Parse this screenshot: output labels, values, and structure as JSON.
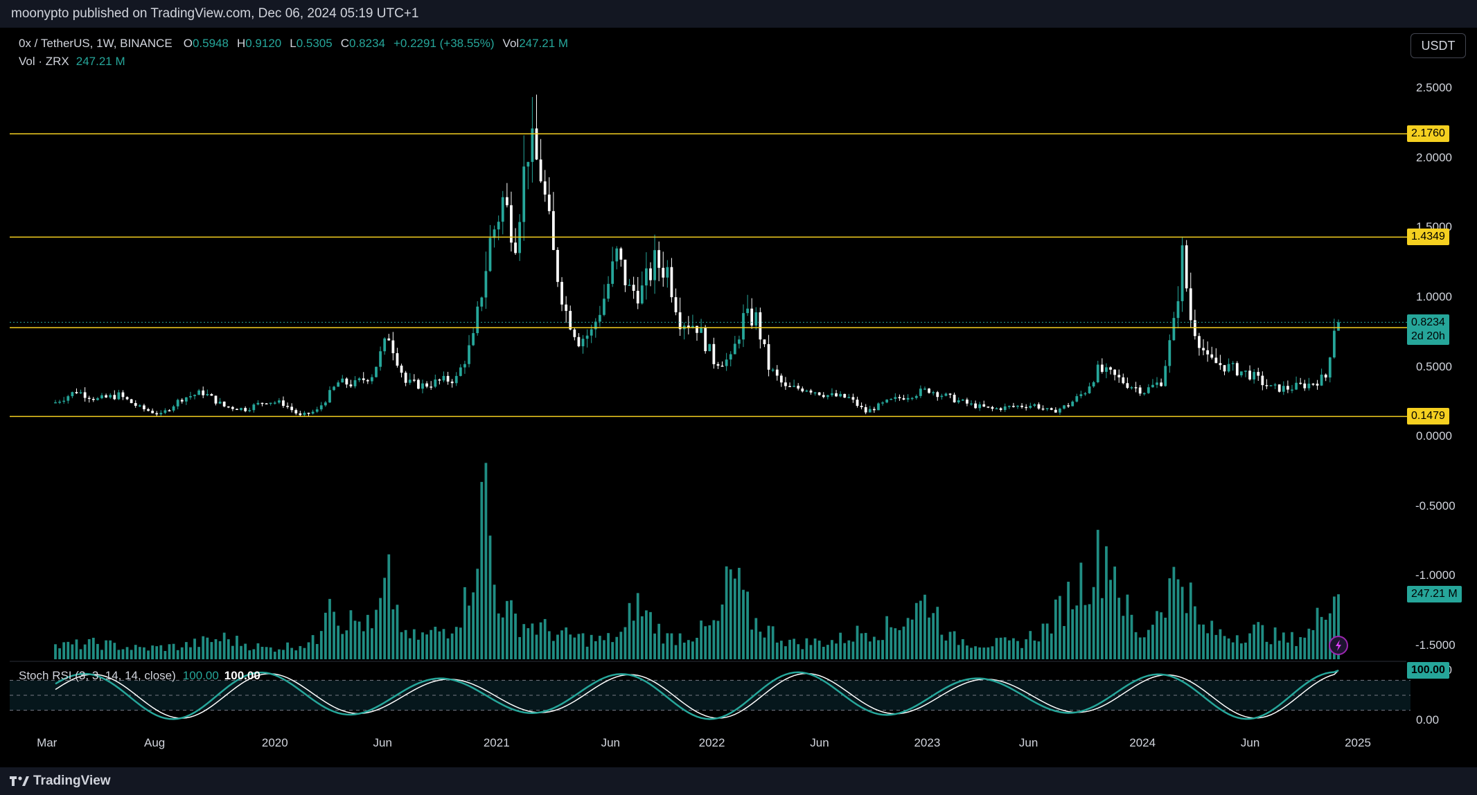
{
  "header": {
    "publisher": "moonypto published on TradingView.com, Dec 06, 2024 05:19 UTC+1"
  },
  "legend": {
    "symbol": "0x / TetherUS, 1W, BINANCE",
    "o_label": "O",
    "o": "0.5948",
    "h_label": "H",
    "h": "0.9120",
    "l_label": "L",
    "l": "0.5305",
    "c_label": "C",
    "c": "0.8234",
    "change": "+0.2291 (+38.55%)",
    "vol_label": "Vol",
    "vol": "247.21 M"
  },
  "volume_legend": {
    "label": "Vol · ZRX",
    "value": "247.21 M"
  },
  "rsi_legend": {
    "label": "Stoch RSI (3, 3, 14, 14, close)",
    "k": "100.00",
    "d": "100.00"
  },
  "currency": "USDT",
  "footer": {
    "brand": "TradingView"
  },
  "colors": {
    "up": "#26a69a",
    "down": "#ffffff",
    "level": "#f5d020",
    "background": "#000000",
    "bars": "#131722"
  },
  "chart_data": {
    "type": "candlestick",
    "title": "0x / TetherUS, 1W, BINANCE",
    "price_axis": {
      "ticks": [
        "2.5000",
        "2.0000",
        "1.5000",
        "1.0000",
        "0.5000",
        "0.0000",
        "-0.5000",
        "-1.0000",
        "-1.5000"
      ],
      "range": [
        -1.6,
        2.6
      ]
    },
    "time_axis": {
      "ticks": [
        "Mar",
        "Aug",
        "2020",
        "Jun",
        "2021",
        "Jun",
        "2022",
        "Jun",
        "2023",
        "Jun",
        "2024",
        "Jun",
        "2025"
      ]
    },
    "horizontal_levels": [
      "2.1760",
      "1.4349",
      "0.7853",
      "0.1479"
    ],
    "last_price": {
      "value": "0.8234",
      "countdown": "2d 20h"
    },
    "volume_last": "247.21 M",
    "rsi_axis": {
      "ticks": [
        "100.00",
        "0.00"
      ]
    },
    "rsi_last": "100.00",
    "weekly_close_approx": [
      [
        0,
        0.25
      ],
      [
        10,
        0.33
      ],
      [
        20,
        0.27
      ],
      [
        30,
        0.3
      ],
      [
        40,
        0.21
      ],
      [
        50,
        0.16
      ],
      [
        60,
        0.28
      ],
      [
        70,
        0.32
      ],
      [
        80,
        0.22
      ],
      [
        90,
        0.2
      ],
      [
        100,
        0.26
      ],
      [
        108,
        0.24
      ],
      [
        116,
        0.15
      ],
      [
        124,
        0.19
      ],
      [
        134,
        0.39
      ],
      [
        142,
        0.38
      ],
      [
        150,
        0.45
      ],
      [
        158,
        0.73
      ],
      [
        166,
        0.39
      ],
      [
        174,
        0.37
      ],
      [
        182,
        0.4
      ],
      [
        190,
        0.42
      ],
      [
        198,
        0.7
      ],
      [
        206,
        1.4
      ],
      [
        212,
        1.7
      ],
      [
        218,
        1.45
      ],
      [
        224,
        2.1
      ],
      [
        230,
        1.9
      ],
      [
        236,
        1.3
      ],
      [
        242,
        0.9
      ],
      [
        248,
        0.7
      ],
      [
        254,
        0.75
      ],
      [
        260,
        1.0
      ],
      [
        266,
        1.3
      ],
      [
        272,
        1.05
      ],
      [
        278,
        1.05
      ],
      [
        284,
        1.25
      ],
      [
        290,
        1.2
      ],
      [
        296,
        0.85
      ],
      [
        304,
        0.8
      ],
      [
        312,
        0.55
      ],
      [
        320,
        0.55
      ],
      [
        326,
        0.85
      ],
      [
        332,
        0.85
      ],
      [
        338,
        0.5
      ],
      [
        346,
        0.35
      ],
      [
        356,
        0.35
      ],
      [
        366,
        0.3
      ],
      [
        376,
        0.28
      ],
      [
        384,
        0.18
      ],
      [
        394,
        0.25
      ],
      [
        404,
        0.3
      ],
      [
        414,
        0.34
      ],
      [
        424,
        0.28
      ],
      [
        434,
        0.23
      ],
      [
        444,
        0.2
      ],
      [
        454,
        0.22
      ],
      [
        464,
        0.23
      ],
      [
        472,
        0.18
      ],
      [
        480,
        0.23
      ],
      [
        488,
        0.33
      ],
      [
        494,
        0.48
      ],
      [
        500,
        0.45
      ],
      [
        508,
        0.38
      ],
      [
        516,
        0.33
      ],
      [
        524,
        0.4
      ],
      [
        530,
        0.8
      ],
      [
        534,
        1.3
      ],
      [
        538,
        0.85
      ],
      [
        546,
        0.55
      ],
      [
        556,
        0.5
      ],
      [
        566,
        0.45
      ],
      [
        576,
        0.35
      ],
      [
        584,
        0.35
      ],
      [
        594,
        0.38
      ],
      [
        602,
        0.43
      ],
      [
        606,
        0.8
      ]
    ],
    "volume_approx": [
      [
        0,
        5
      ],
      [
        20,
        6
      ],
      [
        40,
        4
      ],
      [
        60,
        5
      ],
      [
        80,
        8
      ],
      [
        100,
        4
      ],
      [
        110,
        5
      ],
      [
        118,
        6
      ],
      [
        124,
        7
      ],
      [
        130,
        33
      ],
      [
        134,
        15
      ],
      [
        146,
        14
      ],
      [
        150,
        11
      ],
      [
        158,
        29
      ],
      [
        166,
        8
      ],
      [
        176,
        9
      ],
      [
        186,
        12
      ],
      [
        194,
        21
      ],
      [
        200,
        45
      ],
      [
        204,
        66
      ],
      [
        208,
        28
      ],
      [
        214,
        18
      ],
      [
        220,
        14
      ],
      [
        230,
        12
      ],
      [
        240,
        9
      ],
      [
        250,
        8
      ],
      [
        260,
        7
      ],
      [
        270,
        10
      ],
      [
        274,
        22
      ],
      [
        290,
        8
      ],
      [
        304,
        10
      ],
      [
        314,
        13
      ],
      [
        320,
        33
      ],
      [
        330,
        15
      ],
      [
        340,
        10
      ],
      [
        350,
        6
      ],
      [
        370,
        7
      ],
      [
        384,
        11
      ],
      [
        396,
        12
      ],
      [
        406,
        18
      ],
      [
        414,
        23
      ],
      [
        424,
        8
      ],
      [
        440,
        6
      ],
      [
        456,
        6
      ],
      [
        470,
        12
      ],
      [
        486,
        30
      ],
      [
        494,
        37
      ],
      [
        500,
        42
      ],
      [
        506,
        22
      ],
      [
        514,
        7
      ],
      [
        530,
        30
      ],
      [
        534,
        34
      ],
      [
        542,
        12
      ],
      [
        556,
        9
      ],
      [
        570,
        11
      ],
      [
        584,
        7
      ],
      [
        596,
        11
      ],
      [
        604,
        27
      ],
      [
        608,
        26
      ]
    ]
  }
}
